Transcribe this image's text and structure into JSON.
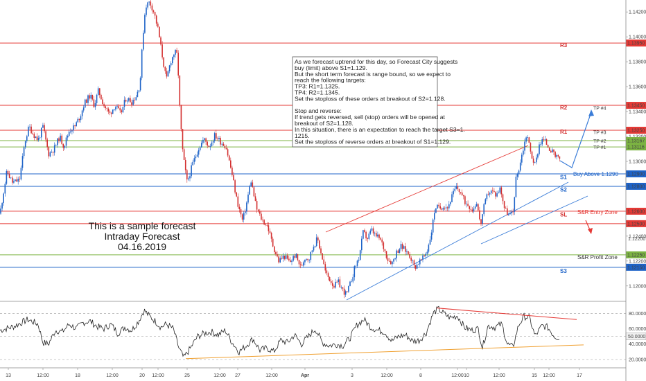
{
  "chart_data": [
    {
      "type": "candlestick",
      "title": "",
      "y_ticks": [
        "1.14200",
        "1.14000",
        "1.13800",
        "1.13600",
        "1.13400",
        "1.13200",
        "1.13000",
        "1.12800",
        "1.12600",
        "1.12400",
        "1.12200",
        "1.12000"
      ],
      "x_ticks": [
        "13",
        "12:00",
        "18",
        "12:00",
        "20",
        "12:00",
        "25",
        "12:00",
        "27",
        "12:00",
        "Apr",
        "3",
        "12:00",
        "8",
        "12:00",
        "10",
        "12:00",
        "15",
        "12:00",
        "17"
      ],
      "levels": [
        {
          "name": "R3",
          "value": 1.1395,
          "label": "1.13950",
          "color": "#e53935",
          "tag": "R3",
          "tagColor": "#d32f2f",
          "tagY": 1.13935
        },
        {
          "name": "R2",
          "value": 1.1345,
          "label": "1.13450",
          "color": "#e53935",
          "tag": "R2",
          "tagColor": "#d32f2f",
          "tagY": 1.13435
        },
        {
          "name": "R1",
          "value": 1.1325,
          "label": "1.13250",
          "color": "#e53935",
          "tag": "R1",
          "tagColor": "#d32f2f",
          "tagY": 1.13238
        },
        {
          "name": "TP2",
          "value": 1.13167,
          "label": "1.13167",
          "color": "#7cb342",
          "tag": "",
          "tagColor": "",
          "tagY": 0
        },
        {
          "name": "TP1",
          "value": 1.13116,
          "label": "1.13116",
          "color": "#7cb342",
          "tag": "",
          "tagColor": "",
          "tagY": 0
        },
        {
          "name": "S1",
          "value": 1.129,
          "label": "1.12900",
          "color": "#1e63c8",
          "tag": "S1",
          "tagColor": "#1e63c8",
          "tagY": 1.12875
        },
        {
          "name": "S2",
          "value": 1.128,
          "label": "1.12800",
          "color": "#1e63c8",
          "tag": "S2",
          "tagColor": "#1e63c8",
          "tagY": 1.12775
        },
        {
          "name": "SL1",
          "value": 1.126,
          "label": "1.12600",
          "color": "#e53935",
          "tag": "SL",
          "tagColor": "#d32f2f",
          "tagY": 1.12575
        },
        {
          "name": "SL2",
          "value": 1.125,
          "label": "1.12500",
          "color": "#e53935",
          "tag": "",
          "tagColor": "",
          "tagY": 0
        },
        {
          "name": "S3a",
          "value": 1.1225,
          "label": "1.12250",
          "color": "#7cb342",
          "tag": "",
          "tagColor": "",
          "tagY": 0
        },
        {
          "name": "S3",
          "value": 1.1215,
          "label": "1.12150",
          "color": "#1e63c8",
          "tag": "S3",
          "tagColor": "#1e63c8",
          "tagY": 1.1212
        }
      ],
      "tp_labels": [
        {
          "text": "TP #4",
          "value": 1.1343
        },
        {
          "text": "TP #3",
          "value": 1.13235
        },
        {
          "text": "TP #2",
          "value": 1.13167
        },
        {
          "text": "TP #1",
          "value": 1.13116
        }
      ],
      "annotations": {
        "buy_above": "Buy Above 1.1290",
        "sr_entry": "S&R Entry Zone",
        "sr_profit": "S&R Profit Zone",
        "price_readout": "1.12200"
      },
      "forecast_lines": [
        "As we forecast uptrend for this day, so Forecast City suggests",
        "buy (limit) above S1=1.129.",
        "But the short term forecast is range bound, so we expect to",
        "reach the following targets:",
        "TP3: R1=1.1325.",
        "TP4: R2=1.1345.",
        "Set the stoploss of these orders at breakout of S2=1.128.",
        "",
        "Stop and reverse:",
        "If trend gets reversed, sell (stop) orders will be opened at",
        "breakout of S2=1.128.",
        "In this situation, there is an expectation to reach the target S3=1.",
        "1215.",
        "Set the stoploss of reverse orders at breakout of S1=1.129."
      ],
      "sample_text": [
        "This is a sample forecast",
        "Intraday Forecast",
        "04.16.2019"
      ],
      "path": [
        {
          "x": 0,
          "y": 1.1258
        },
        {
          "x": 10,
          "y": 1.1292
        },
        {
          "x": 18,
          "y": 1.1283
        },
        {
          "x": 28,
          "y": 1.1285
        },
        {
          "x": 36,
          "y": 1.1316
        },
        {
          "x": 42,
          "y": 1.1328
        },
        {
          "x": 48,
          "y": 1.1322
        },
        {
          "x": 55,
          "y": 1.1317
        },
        {
          "x": 62,
          "y": 1.1328
        },
        {
          "x": 70,
          "y": 1.1306
        },
        {
          "x": 78,
          "y": 1.131
        },
        {
          "x": 86,
          "y": 1.132
        },
        {
          "x": 92,
          "y": 1.1312
        },
        {
          "x": 100,
          "y": 1.1325
        },
        {
          "x": 108,
          "y": 1.1328
        },
        {
          "x": 116,
          "y": 1.1337
        },
        {
          "x": 122,
          "y": 1.1347
        },
        {
          "x": 130,
          "y": 1.1353
        },
        {
          "x": 136,
          "y": 1.1345
        },
        {
          "x": 142,
          "y": 1.1357
        },
        {
          "x": 150,
          "y": 1.1345
        },
        {
          "x": 158,
          "y": 1.1338
        },
        {
          "x": 166,
          "y": 1.1345
        },
        {
          "x": 174,
          "y": 1.1338
        },
        {
          "x": 182,
          "y": 1.1351
        },
        {
          "x": 190,
          "y": 1.1348
        },
        {
          "x": 196,
          "y": 1.1352
        },
        {
          "x": 202,
          "y": 1.1362
        },
        {
          "x": 206,
          "y": 1.14
        },
        {
          "x": 210,
          "y": 1.1425
        },
        {
          "x": 216,
          "y": 1.1428
        },
        {
          "x": 222,
          "y": 1.142
        },
        {
          "x": 228,
          "y": 1.1406
        },
        {
          "x": 234,
          "y": 1.1385
        },
        {
          "x": 240,
          "y": 1.1365
        },
        {
          "x": 246,
          "y": 1.138
        },
        {
          "x": 252,
          "y": 1.1388
        },
        {
          "x": 256,
          "y": 1.1385
        },
        {
          "x": 260,
          "y": 1.1335
        },
        {
          "x": 264,
          "y": 1.1305
        },
        {
          "x": 270,
          "y": 1.1283
        },
        {
          "x": 278,
          "y": 1.1298
        },
        {
          "x": 286,
          "y": 1.131
        },
        {
          "x": 294,
          "y": 1.1318
        },
        {
          "x": 302,
          "y": 1.1312
        },
        {
          "x": 310,
          "y": 1.1321
        },
        {
          "x": 318,
          "y": 1.1316
        },
        {
          "x": 326,
          "y": 1.1312
        },
        {
          "x": 334,
          "y": 1.1292
        },
        {
          "x": 342,
          "y": 1.1268
        },
        {
          "x": 350,
          "y": 1.1252
        },
        {
          "x": 356,
          "y": 1.1267
        },
        {
          "x": 362,
          "y": 1.1285
        },
        {
          "x": 370,
          "y": 1.1262
        },
        {
          "x": 378,
          "y": 1.1253
        },
        {
          "x": 386,
          "y": 1.1248
        },
        {
          "x": 394,
          "y": 1.1232
        },
        {
          "x": 402,
          "y": 1.122
        },
        {
          "x": 410,
          "y": 1.1224
        },
        {
          "x": 418,
          "y": 1.1219
        },
        {
          "x": 426,
          "y": 1.1225
        },
        {
          "x": 434,
          "y": 1.1215
        },
        {
          "x": 440,
          "y": 1.1223
        },
        {
          "x": 446,
          "y": 1.1222
        },
        {
          "x": 452,
          "y": 1.1232
        },
        {
          "x": 458,
          "y": 1.1238
        },
        {
          "x": 464,
          "y": 1.1225
        },
        {
          "x": 470,
          "y": 1.121
        },
        {
          "x": 476,
          "y": 1.1205
        },
        {
          "x": 482,
          "y": 1.12
        },
        {
          "x": 488,
          "y": 1.1203
        },
        {
          "x": 494,
          "y": 1.1197
        },
        {
          "x": 500,
          "y": 1.1193
        },
        {
          "x": 506,
          "y": 1.1203
        },
        {
          "x": 512,
          "y": 1.1215
        },
        {
          "x": 518,
          "y": 1.1223
        },
        {
          "x": 524,
          "y": 1.1243
        },
        {
          "x": 530,
          "y": 1.1238
        },
        {
          "x": 536,
          "y": 1.1245
        },
        {
          "x": 542,
          "y": 1.124
        },
        {
          "x": 548,
          "y": 1.1238
        },
        {
          "x": 554,
          "y": 1.123
        },
        {
          "x": 560,
          "y": 1.1221
        },
        {
          "x": 566,
          "y": 1.1219
        },
        {
          "x": 572,
          "y": 1.1227
        },
        {
          "x": 578,
          "y": 1.1232
        },
        {
          "x": 586,
          "y": 1.1228
        },
        {
          "x": 592,
          "y": 1.1224
        },
        {
          "x": 598,
          "y": 1.1215
        },
        {
          "x": 604,
          "y": 1.1219
        },
        {
          "x": 610,
          "y": 1.1222
        },
        {
          "x": 616,
          "y": 1.1228
        },
        {
          "x": 622,
          "y": 1.1242
        },
        {
          "x": 628,
          "y": 1.1264
        },
        {
          "x": 634,
          "y": 1.1262
        },
        {
          "x": 640,
          "y": 1.1265
        },
        {
          "x": 646,
          "y": 1.1263
        },
        {
          "x": 652,
          "y": 1.1272
        },
        {
          "x": 658,
          "y": 1.1279
        },
        {
          "x": 664,
          "y": 1.1276
        },
        {
          "x": 670,
          "y": 1.1268
        },
        {
          "x": 676,
          "y": 1.1265
        },
        {
          "x": 682,
          "y": 1.1261
        },
        {
          "x": 688,
          "y": 1.1268
        },
        {
          "x": 693,
          "y": 1.1248
        },
        {
          "x": 698,
          "y": 1.1263
        },
        {
          "x": 704,
          "y": 1.1275
        },
        {
          "x": 710,
          "y": 1.1276
        },
        {
          "x": 716,
          "y": 1.1273
        },
        {
          "x": 722,
          "y": 1.1279
        },
        {
          "x": 728,
          "y": 1.1262
        },
        {
          "x": 734,
          "y": 1.1257
        },
        {
          "x": 740,
          "y": 1.1258
        },
        {
          "x": 744,
          "y": 1.1285
        },
        {
          "x": 748,
          "y": 1.1293
        },
        {
          "x": 754,
          "y": 1.1308
        },
        {
          "x": 760,
          "y": 1.1323
        },
        {
          "x": 766,
          "y": 1.1306
        },
        {
          "x": 772,
          "y": 1.1297
        },
        {
          "x": 778,
          "y": 1.1314
        },
        {
          "x": 784,
          "y": 1.1318
        },
        {
          "x": 790,
          "y": 1.1313
        },
        {
          "x": 796,
          "y": 1.1308
        },
        {
          "x": 802,
          "y": 1.1303
        },
        {
          "x": 808,
          "y": 1.1302
        }
      ],
      "rsi": {
        "y_ticks": [
          "80.0000",
          "60.0000",
          "40.0000",
          "20.0000"
        ],
        "current_label": "50.0000",
        "ylim": [
          10,
          93
        ],
        "path": [
          {
            "x": 0,
            "y": 58
          },
          {
            "x": 20,
            "y": 63
          },
          {
            "x": 40,
            "y": 72
          },
          {
            "x": 55,
            "y": 66
          },
          {
            "x": 62,
            "y": 42
          },
          {
            "x": 70,
            "y": 40
          },
          {
            "x": 80,
            "y": 58
          },
          {
            "x": 90,
            "y": 56
          },
          {
            "x": 100,
            "y": 66
          },
          {
            "x": 110,
            "y": 60
          },
          {
            "x": 120,
            "y": 68
          },
          {
            "x": 130,
            "y": 70
          },
          {
            "x": 140,
            "y": 63
          },
          {
            "x": 150,
            "y": 60
          },
          {
            "x": 160,
            "y": 66
          },
          {
            "x": 170,
            "y": 54
          },
          {
            "x": 180,
            "y": 62
          },
          {
            "x": 190,
            "y": 58
          },
          {
            "x": 200,
            "y": 70
          },
          {
            "x": 208,
            "y": 84
          },
          {
            "x": 216,
            "y": 76
          },
          {
            "x": 224,
            "y": 70
          },
          {
            "x": 232,
            "y": 62
          },
          {
            "x": 240,
            "y": 66
          },
          {
            "x": 250,
            "y": 60
          },
          {
            "x": 258,
            "y": 35
          },
          {
            "x": 265,
            "y": 22
          },
          {
            "x": 275,
            "y": 35
          },
          {
            "x": 285,
            "y": 50
          },
          {
            "x": 295,
            "y": 54
          },
          {
            "x": 305,
            "y": 56
          },
          {
            "x": 315,
            "y": 52
          },
          {
            "x": 325,
            "y": 58
          },
          {
            "x": 335,
            "y": 42
          },
          {
            "x": 345,
            "y": 30
          },
          {
            "x": 355,
            "y": 38
          },
          {
            "x": 365,
            "y": 47
          },
          {
            "x": 375,
            "y": 32
          },
          {
            "x": 385,
            "y": 35
          },
          {
            "x": 395,
            "y": 30
          },
          {
            "x": 405,
            "y": 45
          },
          {
            "x": 415,
            "y": 42
          },
          {
            "x": 425,
            "y": 52
          },
          {
            "x": 435,
            "y": 40
          },
          {
            "x": 445,
            "y": 50
          },
          {
            "x": 455,
            "y": 60
          },
          {
            "x": 465,
            "y": 42
          },
          {
            "x": 475,
            "y": 38
          },
          {
            "x": 485,
            "y": 40
          },
          {
            "x": 495,
            "y": 38
          },
          {
            "x": 505,
            "y": 48
          },
          {
            "x": 515,
            "y": 65
          },
          {
            "x": 525,
            "y": 72
          },
          {
            "x": 535,
            "y": 62
          },
          {
            "x": 545,
            "y": 58
          },
          {
            "x": 555,
            "y": 56
          },
          {
            "x": 565,
            "y": 44
          },
          {
            "x": 575,
            "y": 50
          },
          {
            "x": 585,
            "y": 52
          },
          {
            "x": 595,
            "y": 44
          },
          {
            "x": 605,
            "y": 45
          },
          {
            "x": 615,
            "y": 55
          },
          {
            "x": 625,
            "y": 80
          },
          {
            "x": 632,
            "y": 86
          },
          {
            "x": 640,
            "y": 80
          },
          {
            "x": 650,
            "y": 74
          },
          {
            "x": 660,
            "y": 77
          },
          {
            "x": 670,
            "y": 62
          },
          {
            "x": 680,
            "y": 58
          },
          {
            "x": 690,
            "y": 60
          },
          {
            "x": 696,
            "y": 35
          },
          {
            "x": 704,
            "y": 64
          },
          {
            "x": 714,
            "y": 62
          },
          {
            "x": 724,
            "y": 66
          },
          {
            "x": 732,
            "y": 40
          },
          {
            "x": 740,
            "y": 36
          },
          {
            "x": 748,
            "y": 64
          },
          {
            "x": 756,
            "y": 76
          },
          {
            "x": 764,
            "y": 74
          },
          {
            "x": 772,
            "y": 50
          },
          {
            "x": 782,
            "y": 64
          },
          {
            "x": 790,
            "y": 62
          },
          {
            "x": 800,
            "y": 50
          },
          {
            "x": 808,
            "y": 48
          }
        ]
      }
    }
  ]
}
